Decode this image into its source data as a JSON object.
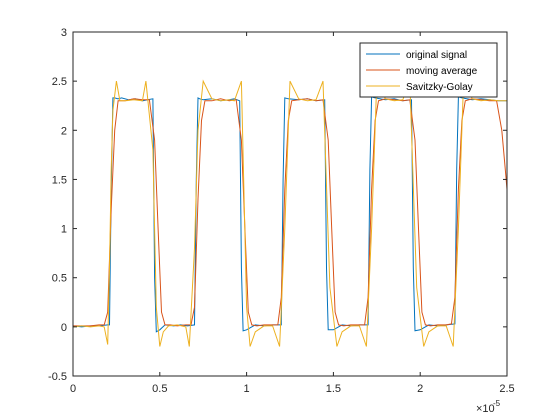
{
  "chart_data": {
    "type": "line",
    "title": "",
    "xlabel": "",
    "ylabel": "",
    "xlim": [
      0,
      2.5e-05
    ],
    "ylim": [
      -0.5,
      3
    ],
    "x_ticks": [
      0,
      5e-06,
      1e-05,
      1.5e-05,
      2e-05,
      2.5e-05
    ],
    "x_tick_labels": [
      "0",
      "0.5",
      "1",
      "1.5",
      "2",
      "2.5"
    ],
    "x_exponent_label": "×10",
    "x_exponent": "-5",
    "y_ticks": [
      -0.5,
      0,
      0.5,
      1,
      1.5,
      2,
      2.5,
      3
    ],
    "y_tick_labels": [
      "-0.5",
      "0",
      "0.5",
      "1",
      "1.5",
      "2",
      "2.5",
      "3"
    ],
    "grid": false,
    "legend_position": "top-right",
    "series": [
      {
        "name": "original signal",
        "color": "#0072BD",
        "x": [
          0,
          5e-07,
          1e-06,
          1.5e-06,
          2e-06,
          2.1e-06,
          2.2e-06,
          2.3e-06,
          2.4e-06,
          2.6e-06,
          2.8e-06,
          3.2e-06,
          3.6e-06,
          4e-06,
          4.3e-06,
          4.6e-06,
          4.7e-06,
          4.8e-06,
          5e-06,
          5.3e-06,
          5.8e-06,
          6.2e-06,
          6.6e-06,
          7e-06,
          7.1e-06,
          7.2e-06,
          7.3e-06,
          7.5e-06,
          8e-06,
          8.5e-06,
          9e-06,
          9.3e-06,
          9.6e-06,
          9.7e-06,
          9.8e-06,
          1e-05,
          1.05e-05,
          1.1e-05,
          1.15e-05,
          1.2e-05,
          1.21e-05,
          1.22e-05,
          1.24e-05,
          1.3e-05,
          1.35e-05,
          1.4e-05,
          1.45e-05,
          1.46e-05,
          1.47e-05,
          1.5e-05,
          1.55e-05,
          1.6e-05,
          1.65e-05,
          1.7e-05,
          1.71e-05,
          1.72e-05,
          1.74e-05,
          1.8e-05,
          1.85e-05,
          1.9e-05,
          1.95e-05,
          1.96e-05,
          1.97e-05,
          2e-05,
          2.05e-05,
          2.1e-05,
          2.15e-05,
          2.2e-05,
          2.21e-05,
          2.22e-05,
          2.24e-05,
          2.3e-05,
          2.35e-05,
          2.4e-05,
          2.45e-05,
          2.5e-05
        ],
        "y": [
          0.01,
          0,
          0.01,
          0.01,
          0.02,
          0.02,
          1.4,
          2.33,
          2.33,
          2.32,
          2.33,
          2.31,
          2.32,
          2.3,
          2.31,
          2.32,
          0.5,
          -0.05,
          -0.03,
          0.02,
          0.01,
          0.02,
          0.01,
          0.02,
          1.5,
          2.33,
          2.32,
          2.31,
          2.32,
          2.3,
          2.31,
          2.32,
          2.3,
          0.6,
          -0.04,
          -0.03,
          0.02,
          0.01,
          0.02,
          0.02,
          1.5,
          2.33,
          2.32,
          2.31,
          2.32,
          2.3,
          2.31,
          0.6,
          -0.03,
          -0.03,
          0.02,
          0.01,
          0.02,
          0.02,
          1.6,
          2.34,
          2.33,
          2.31,
          2.32,
          2.3,
          2.31,
          0.6,
          -0.04,
          -0.03,
          0.02,
          0.01,
          0.02,
          0.03,
          1.6,
          2.34,
          2.33,
          2.31,
          2.32,
          2.31,
          2.3,
          2.3
        ]
      },
      {
        "name": "moving average",
        "color": "#D95319",
        "x": [
          0,
          5e-07,
          1e-06,
          1.5e-06,
          1.8e-06,
          2e-06,
          2.2e-06,
          2.4e-06,
          2.6e-06,
          3e-06,
          3.5e-06,
          4e-06,
          4.4e-06,
          4.7e-06,
          4.9e-06,
          5.1e-06,
          5.3e-06,
          5.6e-06,
          6e-06,
          6.5e-06,
          6.8e-06,
          7e-06,
          7.2e-06,
          7.4e-06,
          7.6e-06,
          8e-06,
          8.5e-06,
          9e-06,
          9.4e-06,
          9.7e-06,
          9.9e-06,
          1.01e-05,
          1.03e-05,
          1.06e-05,
          1.1e-05,
          1.15e-05,
          1.18e-05,
          1.2e-05,
          1.22e-05,
          1.24e-05,
          1.26e-05,
          1.3e-05,
          1.35e-05,
          1.4e-05,
          1.44e-05,
          1.47e-05,
          1.49e-05,
          1.51e-05,
          1.53e-05,
          1.56e-05,
          1.6e-05,
          1.65e-05,
          1.68e-05,
          1.7e-05,
          1.72e-05,
          1.74e-05,
          1.76e-05,
          1.8e-05,
          1.85e-05,
          1.9e-05,
          1.94e-05,
          1.97e-05,
          1.99e-05,
          2.01e-05,
          2.03e-05,
          2.06e-05,
          2.1e-05,
          2.15e-05,
          2.18e-05,
          2.2e-05,
          2.22e-05,
          2.24e-05,
          2.26e-05,
          2.3e-05,
          2.35e-05,
          2.4e-05,
          2.44e-05,
          2.47e-05,
          2.49e-05,
          2.5e-05
        ],
        "y": [
          0.01,
          0.01,
          0.01,
          0.02,
          0.02,
          0.15,
          1.2,
          2.0,
          2.3,
          2.3,
          2.32,
          2.31,
          2.31,
          1.9,
          1.0,
          0.15,
          0.02,
          0.02,
          0.01,
          0.02,
          0.02,
          0.2,
          1.3,
          2.1,
          2.3,
          2.3,
          2.32,
          2.3,
          2.31,
          1.9,
          1.0,
          0.15,
          0.02,
          0.01,
          0.02,
          0.02,
          0.02,
          0.3,
          1.4,
          2.1,
          2.3,
          2.31,
          2.32,
          2.3,
          2.31,
          1.9,
          1.0,
          0.15,
          0.02,
          0.01,
          0.02,
          0.02,
          0.02,
          0.3,
          1.4,
          2.1,
          2.3,
          2.32,
          2.31,
          2.3,
          2.31,
          1.9,
          1.0,
          0.15,
          0.02,
          0.01,
          0.02,
          0.02,
          0.03,
          0.3,
          1.4,
          2.1,
          2.3,
          2.32,
          2.31,
          2.3,
          2.3,
          2.0,
          1.6,
          1.4
        ]
      },
      {
        "name": "Savitzky-Golay",
        "color": "#EDB120",
        "x": [
          0,
          5e-07,
          1e-06,
          1.5e-06,
          1.8e-06,
          2e-06,
          2.1e-06,
          2.2e-06,
          2.3e-06,
          2.5e-06,
          2.7e-06,
          3e-06,
          3.5e-06,
          4e-06,
          4.2e-06,
          4.6e-06,
          4.8e-06,
          5e-06,
          5.2e-06,
          5.5e-06,
          6e-06,
          6.5e-06,
          6.7e-06,
          7e-06,
          7.2e-06,
          7.5e-06,
          8e-06,
          8.5e-06,
          9e-06,
          9.3e-06,
          9.7e-06,
          1e-05,
          1.02e-05,
          1.05e-05,
          1.1e-05,
          1.15e-05,
          1.19e-05,
          1.22e-05,
          1.25e-05,
          1.3e-05,
          1.35e-05,
          1.4e-05,
          1.44e-05,
          1.48e-05,
          1.52e-05,
          1.55e-05,
          1.6e-05,
          1.65e-05,
          1.69e-05,
          1.72e-05,
          1.75e-05,
          1.8e-05,
          1.85e-05,
          1.9e-05,
          1.94e-05,
          1.98e-05,
          2.02e-05,
          2.05e-05,
          2.1e-05,
          2.15e-05,
          2.19e-05,
          2.22e-05,
          2.25e-05,
          2.3e-05,
          2.35e-05,
          2.4e-05,
          2.45e-05,
          2.5e-05
        ],
        "y": [
          0,
          0.01,
          0,
          0.01,
          0,
          -0.18,
          0.6,
          1.6,
          2.2,
          2.5,
          2.3,
          2.3,
          2.31,
          2.3,
          2.5,
          1.8,
          0.2,
          -0.2,
          -0.05,
          0.01,
          0.02,
          0,
          -0.2,
          0.8,
          2.0,
          2.5,
          2.32,
          2.3,
          2.31,
          2.3,
          2.5,
          0.2,
          -0.2,
          -0.05,
          0.01,
          0.01,
          -0.2,
          1.0,
          2.5,
          2.32,
          2.3,
          2.31,
          2.5,
          0.4,
          -0.2,
          -0.05,
          0.01,
          0.01,
          -0.2,
          1.0,
          2.5,
          2.32,
          2.3,
          2.31,
          2.5,
          0.4,
          -0.2,
          -0.05,
          0.01,
          0.01,
          -0.2,
          1.0,
          2.5,
          2.32,
          2.3,
          2.31,
          2.3,
          2.3
        ]
      }
    ]
  }
}
